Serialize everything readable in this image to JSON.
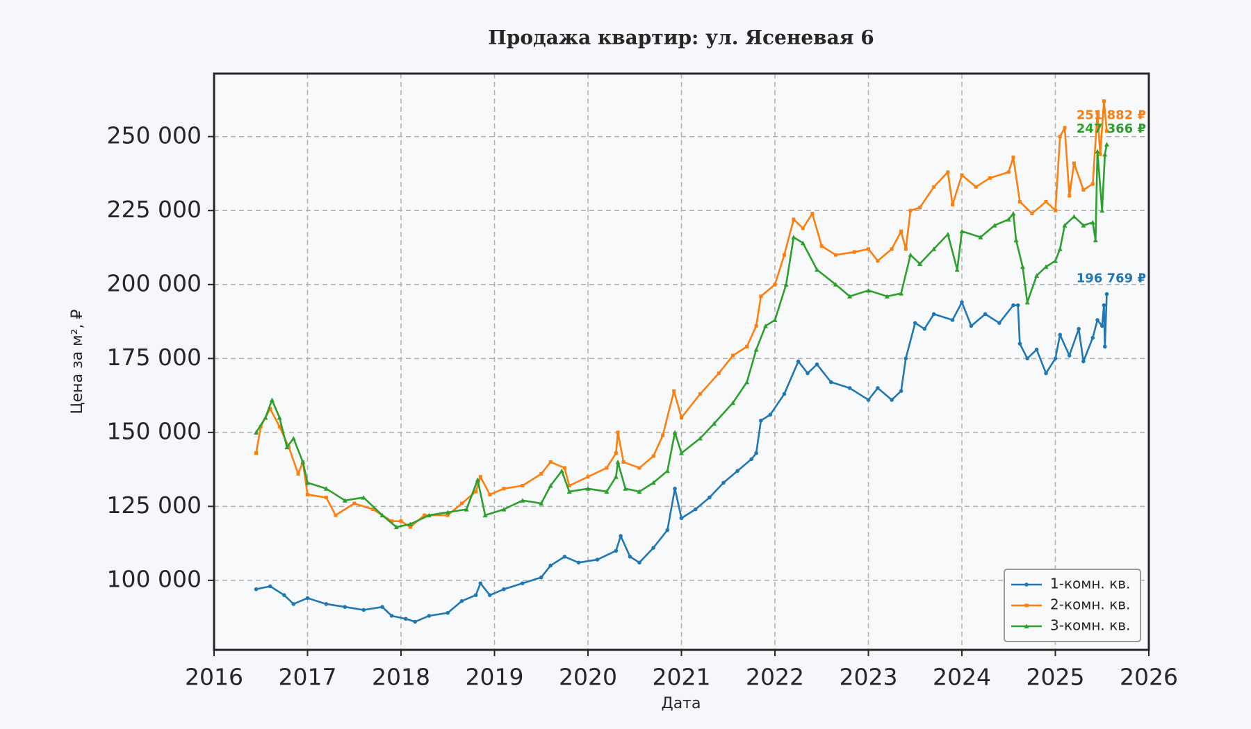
{
  "chart_data": {
    "type": "line",
    "title": "Продажа квартир: ул. Ясеневая 6",
    "x_label": "Дата",
    "y_label": "Цена за м², ₽",
    "xlim": [
      2016,
      2026
    ],
    "xticks": [
      2016,
      2017,
      2018,
      2019,
      2020,
      2021,
      2022,
      2023,
      2024,
      2025,
      2026
    ],
    "ylim": [
      76500,
      271300
    ],
    "yticks": [
      {
        "value": 100000,
        "label": "100 000"
      },
      {
        "value": 125000,
        "label": "125 000"
      },
      {
        "value": 150000,
        "label": "150 000"
      },
      {
        "value": 175000,
        "label": "175 000"
      },
      {
        "value": 200000,
        "label": "200 000"
      },
      {
        "value": 225000,
        "label": "225 000"
      },
      {
        "value": 250000,
        "label": "250 000"
      }
    ],
    "grid": true,
    "legend": "lower right",
    "series": [
      {
        "name": "1-комн. кв.",
        "color": "#1f77b4",
        "marker": "circle",
        "x": [
          2016.45,
          2016.6,
          2016.75,
          2016.85,
          2017.0,
          2017.2,
          2017.4,
          2017.6,
          2017.8,
          2017.9,
          2018.05,
          2018.15,
          2018.3,
          2018.5,
          2018.65,
          2018.8,
          2018.85,
          2018.95,
          2019.1,
          2019.3,
          2019.5,
          2019.6,
          2019.75,
          2019.9,
          2020.1,
          2020.3,
          2020.35,
          2020.45,
          2020.55,
          2020.7,
          2020.85,
          2020.93,
          2021.0,
          2021.15,
          2021.3,
          2021.45,
          2021.6,
          2021.75,
          2021.8,
          2021.85,
          2021.95,
          2022.1,
          2022.25,
          2022.35,
          2022.45,
          2022.6,
          2022.8,
          2023.0,
          2023.1,
          2023.25,
          2023.35,
          2023.4,
          2023.5,
          2023.6,
          2023.7,
          2023.9,
          2024.0,
          2024.1,
          2024.25,
          2024.4,
          2024.55,
          2024.6,
          2024.62,
          2024.7,
          2024.8,
          2024.9,
          2025.0,
          2025.05,
          2025.15,
          2025.25,
          2025.3,
          2025.4,
          2025.45,
          2025.5,
          2025.52,
          2025.53,
          2025.55
        ],
        "values": [
          97000,
          98000,
          95000,
          92000,
          94000,
          92000,
          91000,
          90000,
          91000,
          88000,
          87000,
          86000,
          88000,
          89000,
          93000,
          95000,
          99000,
          95000,
          97000,
          99000,
          101000,
          105000,
          108000,
          106000,
          107000,
          110000,
          115000,
          108000,
          106000,
          111000,
          117000,
          131000,
          121000,
          124000,
          128000,
          133000,
          137000,
          141000,
          143000,
          154000,
          156000,
          163000,
          174000,
          170000,
          173000,
          167000,
          165000,
          161000,
          165000,
          161000,
          164000,
          175000,
          187000,
          185000,
          190000,
          188000,
          194000,
          186000,
          190000,
          187000,
          193000,
          193000,
          180000,
          175000,
          178000,
          170000,
          175000,
          183000,
          176000,
          185000,
          174000,
          182000,
          188000,
          186000,
          193000,
          179000,
          196769
        ],
        "value_labels": [
          null,
          null,
          null,
          null,
          null,
          null,
          null,
          null,
          null,
          null,
          null,
          null,
          null,
          null,
          null,
          null,
          null,
          null,
          null,
          null,
          null,
          null,
          null,
          null,
          null,
          null,
          null,
          null,
          null,
          null,
          null,
          null,
          null,
          null,
          null,
          null,
          null,
          null,
          null,
          null,
          null,
          null,
          null,
          null,
          null,
          null,
          null,
          null,
          null,
          null,
          null,
          null,
          null,
          null,
          null,
          null,
          null,
          null,
          null,
          null,
          null,
          null,
          null,
          null,
          null,
          null,
          null,
          null,
          null,
          null,
          null,
          null,
          null,
          null,
          null,
          null,
          "196 769 ₽"
        ]
      },
      {
        "name": "2-комн. кв.",
        "color": "#ff7f0e",
        "marker": "square",
        "x": [
          2016.45,
          2016.5,
          2016.6,
          2016.7,
          2016.8,
          2016.9,
          2016.95,
          2017.0,
          2017.2,
          2017.3,
          2017.5,
          2017.7,
          2017.9,
          2018.0,
          2018.1,
          2018.25,
          2018.5,
          2018.65,
          2018.8,
          2018.85,
          2018.95,
          2019.1,
          2019.3,
          2019.5,
          2019.6,
          2019.75,
          2019.8,
          2020.0,
          2020.2,
          2020.3,
          2020.32,
          2020.38,
          2020.55,
          2020.7,
          2020.8,
          2020.92,
          2021.0,
          2021.2,
          2021.4,
          2021.55,
          2021.7,
          2021.8,
          2021.85,
          2022.0,
          2022.1,
          2022.2,
          2022.3,
          2022.4,
          2022.5,
          2022.65,
          2022.85,
          2023.0,
          2023.1,
          2023.25,
          2023.35,
          2023.4,
          2023.45,
          2023.55,
          2023.7,
          2023.85,
          2023.9,
          2024.0,
          2024.15,
          2024.3,
          2024.5,
          2024.55,
          2024.62,
          2024.75,
          2024.9,
          2025.0,
          2025.05,
          2025.1,
          2025.15,
          2025.2,
          2025.3,
          2025.4,
          2025.45,
          2025.48,
          2025.52,
          2025.55
        ],
        "values": [
          143000,
          152000,
          158000,
          152000,
          145000,
          136000,
          140000,
          129000,
          128000,
          122000,
          126000,
          124000,
          120000,
          120000,
          118000,
          122000,
          122000,
          126000,
          130000,
          135000,
          129000,
          131000,
          132000,
          136000,
          140000,
          138000,
          132000,
          135000,
          138000,
          143000,
          150000,
          140000,
          138000,
          142000,
          149000,
          164000,
          155000,
          163000,
          170000,
          176000,
          179000,
          186000,
          196000,
          200000,
          210000,
          222000,
          219000,
          224000,
          213000,
          210000,
          211000,
          212000,
          208000,
          212000,
          218000,
          212000,
          225000,
          226000,
          233000,
          238000,
          227000,
          237000,
          233000,
          236000,
          238000,
          243000,
          228000,
          224000,
          228000,
          225000,
          250000,
          253000,
          230000,
          241000,
          232000,
          234000,
          258000,
          244000,
          262000,
          251882
        ],
        "value_labels": [
          null,
          null,
          null,
          null,
          null,
          null,
          null,
          null,
          null,
          null,
          null,
          null,
          null,
          null,
          null,
          null,
          null,
          null,
          null,
          null,
          null,
          null,
          null,
          null,
          null,
          null,
          null,
          null,
          null,
          null,
          null,
          null,
          null,
          null,
          null,
          null,
          null,
          null,
          null,
          null,
          null,
          null,
          null,
          null,
          null,
          null,
          null,
          null,
          null,
          null,
          null,
          null,
          null,
          null,
          null,
          null,
          null,
          null,
          null,
          null,
          null,
          null,
          null,
          null,
          null,
          null,
          null,
          null,
          null,
          null,
          null,
          null,
          null,
          null,
          null,
          null,
          null,
          null,
          null,
          "251 882 ₽"
        ]
      },
      {
        "name": "3-комн. кв.",
        "color": "#2ca02c",
        "marker": "triangle",
        "x": [
          2016.45,
          2016.55,
          2016.62,
          2016.7,
          2016.78,
          2016.85,
          2016.95,
          2017.0,
          2017.2,
          2017.4,
          2017.6,
          2017.8,
          2017.95,
          2018.1,
          2018.3,
          2018.5,
          2018.7,
          2018.82,
          2018.9,
          2019.1,
          2019.3,
          2019.5,
          2019.6,
          2019.72,
          2019.8,
          2020.0,
          2020.2,
          2020.3,
          2020.32,
          2020.4,
          2020.55,
          2020.7,
          2020.85,
          2020.93,
          2021.0,
          2021.2,
          2021.35,
          2021.55,
          2021.7,
          2021.8,
          2021.9,
          2022.0,
          2022.12,
          2022.2,
          2022.3,
          2022.45,
          2022.65,
          2022.8,
          2023.0,
          2023.2,
          2023.35,
          2023.45,
          2023.55,
          2023.7,
          2023.85,
          2023.95,
          2024.0,
          2024.2,
          2024.35,
          2024.5,
          2024.55,
          2024.58,
          2024.65,
          2024.7,
          2024.8,
          2024.9,
          2025.0,
          2025.05,
          2025.1,
          2025.2,
          2025.3,
          2025.4,
          2025.43,
          2025.45,
          2025.5,
          2025.53,
          2025.55
        ],
        "values": [
          150000,
          155000,
          161000,
          155000,
          145000,
          148000,
          140000,
          133000,
          131000,
          127000,
          128000,
          122000,
          118000,
          119000,
          122000,
          123000,
          124000,
          134000,
          122000,
          124000,
          127000,
          126000,
          132000,
          137000,
          130000,
          131000,
          130000,
          135000,
          140000,
          131000,
          130000,
          133000,
          137000,
          150000,
          143000,
          148000,
          153000,
          160000,
          167000,
          178000,
          186000,
          188000,
          200000,
          216000,
          214000,
          205000,
          200000,
          196000,
          198000,
          196000,
          197000,
          210000,
          207000,
          212000,
          217000,
          205000,
          218000,
          216000,
          220000,
          222000,
          224000,
          215000,
          206000,
          194000,
          203000,
          206000,
          208000,
          212000,
          220000,
          223000,
          220000,
          221000,
          215000,
          245000,
          225000,
          244000,
          247366
        ],
        "value_labels": [
          null,
          null,
          null,
          null,
          null,
          null,
          null,
          null,
          null,
          null,
          null,
          null,
          null,
          null,
          null,
          null,
          null,
          null,
          null,
          null,
          null,
          null,
          null,
          null,
          null,
          null,
          null,
          null,
          null,
          null,
          null,
          null,
          null,
          null,
          null,
          null,
          null,
          null,
          null,
          null,
          null,
          null,
          null,
          null,
          null,
          null,
          null,
          null,
          null,
          null,
          null,
          null,
          null,
          null,
          null,
          null,
          null,
          null,
          null,
          null,
          null,
          null,
          null,
          null,
          null,
          null,
          null,
          null,
          null,
          null,
          null,
          null,
          null,
          null,
          null,
          null,
          "247 366 ₽"
        ]
      }
    ]
  }
}
